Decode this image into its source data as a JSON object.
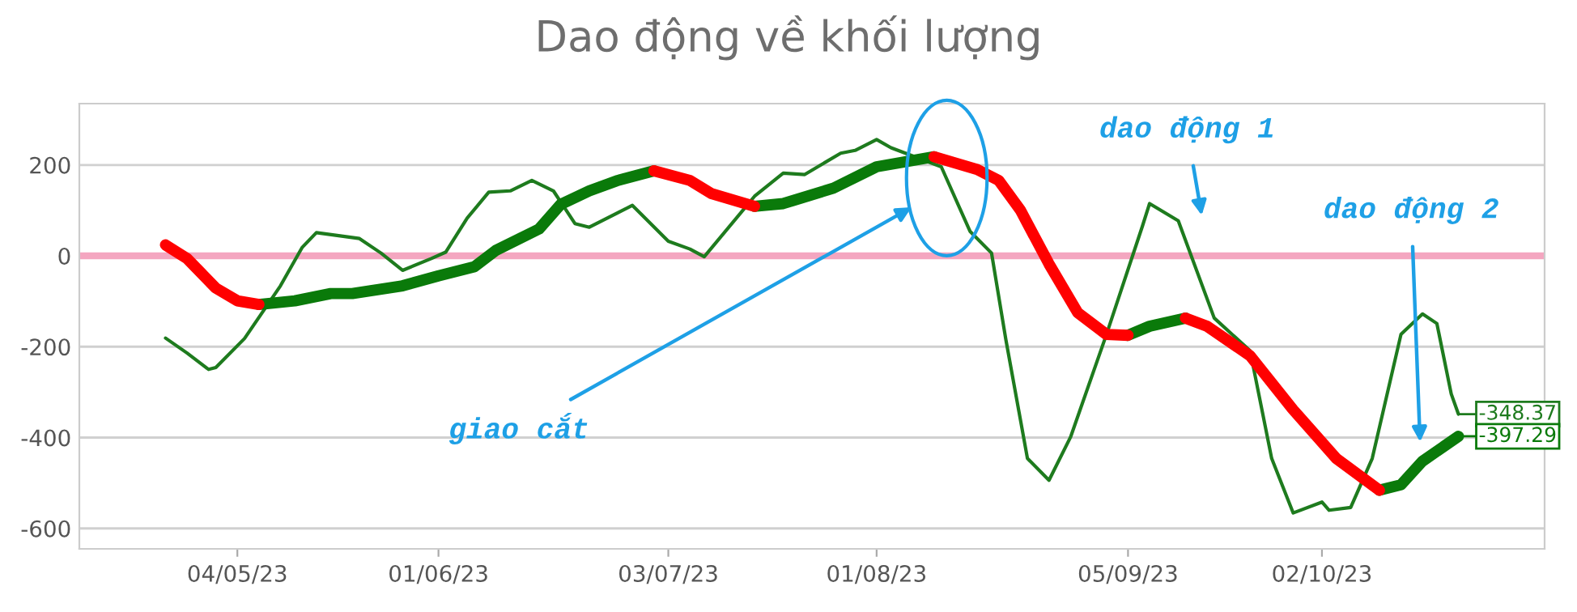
{
  "chart_data": {
    "type": "line",
    "title": "Dao động về khối lượng",
    "xlim": [
      "2023-04-12",
      "2023-11-02"
    ],
    "ylim": [
      -645,
      335
    ],
    "xticks": [
      {
        "value": "2023-05-04",
        "label": "04/05/23"
      },
      {
        "value": "2023-06-01",
        "label": "01/06/23"
      },
      {
        "value": "2023-07-03",
        "label": "03/07/23"
      },
      {
        "value": "2023-08-01",
        "label": "01/08/23"
      },
      {
        "value": "2023-09-05",
        "label": "05/09/23"
      },
      {
        "value": "2023-10-02",
        "label": "02/10/23"
      }
    ],
    "yticks": [
      -600,
      -400,
      -200,
      0,
      200
    ],
    "grid": "y",
    "legend": false,
    "marker": "none",
    "line_style": "solid",
    "series": [
      {
        "color": "#1e7b1e",
        "x": [
          "2023-04-24",
          "2023-04-27",
          "2023-04-30",
          "2023-05-01",
          "2023-05-05",
          "2023-05-10",
          "2023-05-13",
          "2023-05-15",
          "2023-05-21",
          "2023-05-24",
          "2023-05-27",
          "2023-05-31",
          "2023-06-02",
          "2023-06-05",
          "2023-06-08",
          "2023-06-11",
          "2023-06-14",
          "2023-06-17",
          "2023-06-20",
          "2023-06-22",
          "2023-06-28",
          "2023-07-03",
          "2023-07-06",
          "2023-07-08",
          "2023-07-15",
          "2023-07-19",
          "2023-07-22",
          "2023-07-27",
          "2023-07-29",
          "2023-08-01",
          "2023-08-03",
          "2023-08-10",
          "2023-08-14",
          "2023-08-17",
          "2023-08-19",
          "2023-08-22",
          "2023-08-25",
          "2023-08-28",
          "2023-09-02",
          "2023-09-07",
          "2023-09-08",
          "2023-09-12",
          "2023-09-17",
          "2023-09-22",
          "2023-09-25",
          "2023-09-28",
          "2023-10-02",
          "2023-10-03",
          "2023-10-06",
          "2023-10-09",
          "2023-10-13",
          "2023-10-16",
          "2023-10-18",
          "2023-10-20",
          "2023-10-21"
        ],
        "values": [
          -181,
          -214,
          -250,
          -246,
          -182,
          -66,
          18,
          51,
          38,
          6,
          -32,
          -6,
          8,
          83,
          140,
          143,
          166,
          143,
          71,
          63,
          111,
          32,
          15,
          -2,
          131,
          182,
          179,
          226,
          232,
          256,
          238,
          196,
          54,
          6,
          -185,
          -446,
          -494,
          -399,
          -173,
          65,
          115,
          77,
          -137,
          -209,
          -446,
          -566,
          -542,
          -560,
          -554,
          -446,
          -173,
          -128,
          -149,
          -304,
          -348.37
        ],
        "value_labels": [
          null,
          null,
          null,
          null,
          null,
          null,
          null,
          null,
          null,
          null,
          null,
          null,
          null,
          null,
          null,
          null,
          null,
          null,
          null,
          null,
          null,
          null,
          null,
          null,
          null,
          null,
          null,
          null,
          null,
          null,
          null,
          null,
          null,
          null,
          null,
          null,
          null,
          null,
          null,
          null,
          null,
          null,
          null,
          null,
          null,
          null,
          null,
          null,
          null,
          null,
          null,
          null,
          null,
          null,
          "-348.37"
        ]
      },
      {
        "color": "#0a7a0a",
        "x": [
          "2023-05-07",
          "2023-05-12",
          "2023-05-17",
          "2023-05-20",
          "2023-05-27",
          "2023-06-01",
          "2023-06-06",
          "2023-06-09",
          "2023-06-15",
          "2023-06-18",
          "2023-06-22",
          "2023-06-26",
          "2023-07-01",
          "2023-07-06",
          "2023-07-09",
          "2023-07-15",
          "2023-07-19",
          "2023-07-26",
          "2023-08-01",
          "2023-08-09",
          "2023-08-15",
          "2023-08-18",
          "2023-08-21",
          "2023-08-25",
          "2023-08-29",
          "2023-09-02",
          "2023-09-05",
          "2023-09-08",
          "2023-09-13",
          "2023-09-16",
          "2023-09-22",
          "2023-09-28",
          "2023-10-04",
          "2023-10-10",
          "2023-10-13",
          "2023-10-16",
          "2023-10-21"
        ],
        "values": [
          -107,
          -99,
          -83,
          -83,
          -66,
          -44,
          -24,
          12,
          59,
          113,
          143,
          166,
          187,
          null,
          null,
          109,
          115,
          149,
          196,
          218,
          null,
          null,
          null,
          null,
          null,
          null,
          -175,
          -155,
          -137,
          null,
          null,
          null,
          null,
          -516,
          -504,
          -452,
          -397.29
        ],
        "value_labels": [
          null,
          null,
          null,
          null,
          null,
          null,
          null,
          null,
          null,
          null,
          null,
          null,
          null,
          null,
          null,
          null,
          null,
          null,
          null,
          null,
          null,
          null,
          null,
          null,
          null,
          null,
          null,
          null,
          null,
          null,
          null,
          null,
          null,
          null,
          null,
          null,
          "-397.29"
        ]
      },
      {
        "color": "#ff0000",
        "x": [
          "2023-04-24",
          "2023-04-27",
          "2023-05-01",
          "2023-05-04",
          "2023-05-07",
          "2023-05-12",
          "2023-05-17",
          "2023-05-20",
          "2023-05-27",
          "2023-06-01",
          "2023-06-06",
          "2023-06-09",
          "2023-06-15",
          "2023-06-18",
          "2023-06-22",
          "2023-06-26",
          "2023-07-01",
          "2023-07-06",
          "2023-07-09",
          "2023-07-15",
          "2023-07-19",
          "2023-07-26",
          "2023-08-01",
          "2023-08-09",
          "2023-08-15",
          "2023-08-18",
          "2023-08-21",
          "2023-08-25",
          "2023-08-29",
          "2023-09-02",
          "2023-09-05",
          "2023-09-08",
          "2023-09-13",
          "2023-09-16",
          "2023-09-22",
          "2023-09-28",
          "2023-10-04",
          "2023-10-10"
        ],
        "values": [
          24,
          -6,
          -71,
          -99,
          -107,
          null,
          null,
          null,
          null,
          null,
          null,
          null,
          null,
          null,
          null,
          null,
          187,
          166,
          137,
          109,
          null,
          null,
          null,
          218,
          190,
          166,
          101,
          -18,
          -125,
          -173,
          -175,
          null,
          -137,
          -155,
          -220,
          -339,
          -446,
          -516
        ]
      }
    ],
    "ref_lines": [
      {
        "axis": "y",
        "value": 0,
        "color": "#f4a6c0"
      }
    ],
    "annotations": [
      "giao cắt",
      "dao động 1",
      "dao động 2"
    ]
  }
}
